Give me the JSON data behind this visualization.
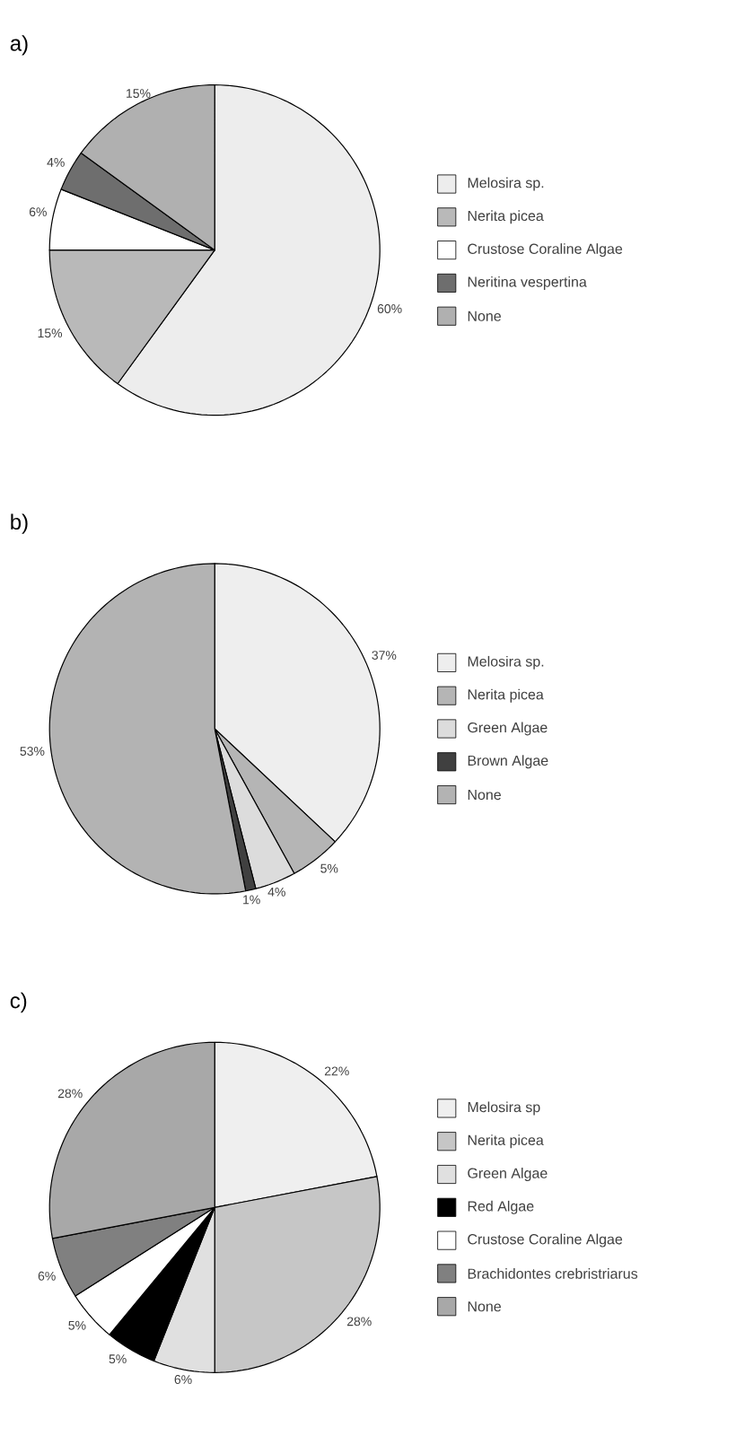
{
  "chart_data": [
    {
      "type": "pie",
      "title": "a)",
      "categories": [
        "Melosira sp.",
        "Nerita picea",
        "Crustose Coraline Algae",
        "Neritina vespertina",
        "None"
      ],
      "values": [
        60,
        15,
        6,
        4,
        15
      ],
      "value_labels": [
        "60%",
        "15%",
        "6%",
        "4%",
        "15%"
      ],
      "colors": [
        "#ededed",
        "#b9b9b9",
        "#ffffff",
        "#6e6e6e",
        "#b0b0b0"
      ],
      "legend": "right"
    },
    {
      "type": "pie",
      "title": "b)",
      "categories": [
        "Melosira sp.",
        "Nerita picea",
        "Green Algae",
        "Brown Algae",
        "None"
      ],
      "values": [
        37,
        5,
        4,
        1,
        53
      ],
      "value_labels": [
        "37%",
        "5%",
        "4%",
        "1%",
        "53%"
      ],
      "colors": [
        "#eeeeee",
        "#b5b5b5",
        "#dcdcdc",
        "#404040",
        "#b3b3b3"
      ],
      "legend": "right"
    },
    {
      "type": "pie",
      "title": "c)",
      "categories": [
        "Melosira sp",
        "Nerita picea",
        "Green Algae",
        "Red Algae",
        "Crustose Coraline Algae",
        "Brachidontes crebristriarus",
        "None"
      ],
      "values": [
        22,
        28,
        6,
        5,
        5,
        6,
        28
      ],
      "value_labels": [
        "22%",
        "28%",
        "6%",
        "5%",
        "5%",
        "6%",
        "28%"
      ],
      "colors": [
        "#efefef",
        "#c6c6c6",
        "#e0e0e0",
        "#000000",
        "#ffffff",
        "#808080",
        "#a8a8a8"
      ],
      "legend": "right"
    }
  ]
}
